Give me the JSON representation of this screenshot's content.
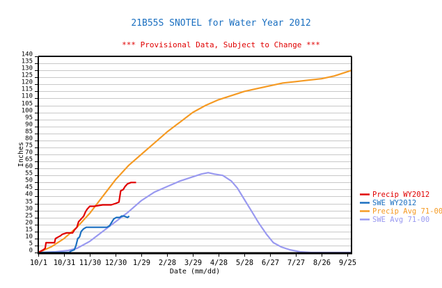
{
  "chart_data": {
    "type": "line",
    "title": "21B55S SNOTEL for Water Year 2012",
    "subtitle": "*** Provisional Data, Subject to Change ***",
    "xlabel": "Date (mm/dd)",
    "ylabel": "Inches",
    "xlim": [
      0,
      365
    ],
    "ylim": [
      0,
      140
    ],
    "y_ticks": [
      0,
      5,
      10,
      15,
      20,
      25,
      30,
      35,
      40,
      45,
      50,
      55,
      60,
      65,
      70,
      75,
      80,
      85,
      90,
      95,
      100,
      105,
      110,
      115,
      120,
      125,
      130,
      135,
      140
    ],
    "x_ticks": [
      {
        "day": 0,
        "label": "10/1"
      },
      {
        "day": 30,
        "label": "10/31"
      },
      {
        "day": 60,
        "label": "11/30"
      },
      {
        "day": 90,
        "label": "12/30"
      },
      {
        "day": 120,
        "label": "1/29"
      },
      {
        "day": 150,
        "label": "2/28"
      },
      {
        "day": 180,
        "label": "3/29"
      },
      {
        "day": 210,
        "label": "4/28"
      },
      {
        "day": 240,
        "label": "5/28"
      },
      {
        "day": 270,
        "label": "6/27"
      },
      {
        "day": 300,
        "label": "7/27"
      },
      {
        "day": 330,
        "label": "8/26"
      },
      {
        "day": 360,
        "label": "9/25"
      }
    ],
    "grid": true,
    "legend_position": "right",
    "x_unit": "day of water year",
    "series": [
      {
        "name": "Precip WY2012",
        "color": "#e00000",
        "points": [
          [
            0,
            0
          ],
          [
            3,
            1
          ],
          [
            6,
            2
          ],
          [
            8,
            3
          ],
          [
            9,
            7
          ],
          [
            19,
            7
          ],
          [
            20,
            10
          ],
          [
            23,
            11
          ],
          [
            26,
            12
          ],
          [
            28,
            13
          ],
          [
            33,
            14
          ],
          [
            40,
            14
          ],
          [
            42,
            16
          ],
          [
            45,
            18
          ],
          [
            47,
            22
          ],
          [
            50,
            24
          ],
          [
            53,
            26
          ],
          [
            55,
            29
          ],
          [
            57,
            31
          ],
          [
            60,
            33
          ],
          [
            65,
            33
          ],
          [
            75,
            34
          ],
          [
            85,
            34
          ],
          [
            90,
            35
          ],
          [
            94,
            36
          ],
          [
            96,
            44
          ],
          [
            99,
            45
          ],
          [
            101,
            47
          ],
          [
            104,
            49
          ],
          [
            108,
            50
          ],
          [
            114,
            50
          ]
        ]
      },
      {
        "name": "SWE WY2012",
        "color": "#1a6fc0",
        "points": [
          [
            0,
            0
          ],
          [
            36,
            0
          ],
          [
            38,
            1
          ],
          [
            42,
            2
          ],
          [
            44,
            5
          ],
          [
            46,
            10
          ],
          [
            48,
            11
          ],
          [
            50,
            15
          ],
          [
            53,
            17
          ],
          [
            56,
            18
          ],
          [
            65,
            18
          ],
          [
            75,
            18
          ],
          [
            80,
            18
          ],
          [
            83,
            19
          ],
          [
            86,
            22
          ],
          [
            88,
            24
          ],
          [
            91,
            25
          ],
          [
            95,
            25
          ],
          [
            97,
            26
          ],
          [
            100,
            26
          ],
          [
            104,
            25
          ],
          [
            106,
            26
          ]
        ]
      },
      {
        "name": "Precip Avg 71-00",
        "color": "#f59a23",
        "points": [
          [
            0,
            0
          ],
          [
            15,
            4
          ],
          [
            30,
            10
          ],
          [
            45,
            18
          ],
          [
            60,
            28
          ],
          [
            75,
            40
          ],
          [
            90,
            52
          ],
          [
            105,
            62
          ],
          [
            120,
            70
          ],
          [
            135,
            78
          ],
          [
            150,
            86
          ],
          [
            165,
            93
          ],
          [
            180,
            100
          ],
          [
            195,
            105
          ],
          [
            210,
            109
          ],
          [
            225,
            112
          ],
          [
            240,
            115
          ],
          [
            255,
            117
          ],
          [
            270,
            119
          ],
          [
            285,
            121
          ],
          [
            300,
            122
          ],
          [
            315,
            123
          ],
          [
            330,
            124
          ],
          [
            345,
            126
          ],
          [
            360,
            129
          ],
          [
            365,
            130
          ]
        ]
      },
      {
        "name": "SWE Avg 71-00",
        "color": "#9999f0",
        "points": [
          [
            0,
            0
          ],
          [
            20,
            0.5
          ],
          [
            35,
            1.5
          ],
          [
            45,
            3
          ],
          [
            60,
            8
          ],
          [
            75,
            15
          ],
          [
            90,
            22
          ],
          [
            105,
            29
          ],
          [
            120,
            37
          ],
          [
            135,
            43
          ],
          [
            150,
            47
          ],
          [
            165,
            51
          ],
          [
            180,
            54
          ],
          [
            190,
            56
          ],
          [
            198,
            57
          ],
          [
            205,
            56
          ],
          [
            215,
            55
          ],
          [
            225,
            51
          ],
          [
            232,
            46
          ],
          [
            240,
            38
          ],
          [
            248,
            30
          ],
          [
            257,
            21
          ],
          [
            266,
            13
          ],
          [
            274,
            7
          ],
          [
            283,
            4
          ],
          [
            293,
            2
          ],
          [
            305,
            0.5
          ],
          [
            318,
            0
          ],
          [
            365,
            0
          ]
        ]
      }
    ]
  }
}
